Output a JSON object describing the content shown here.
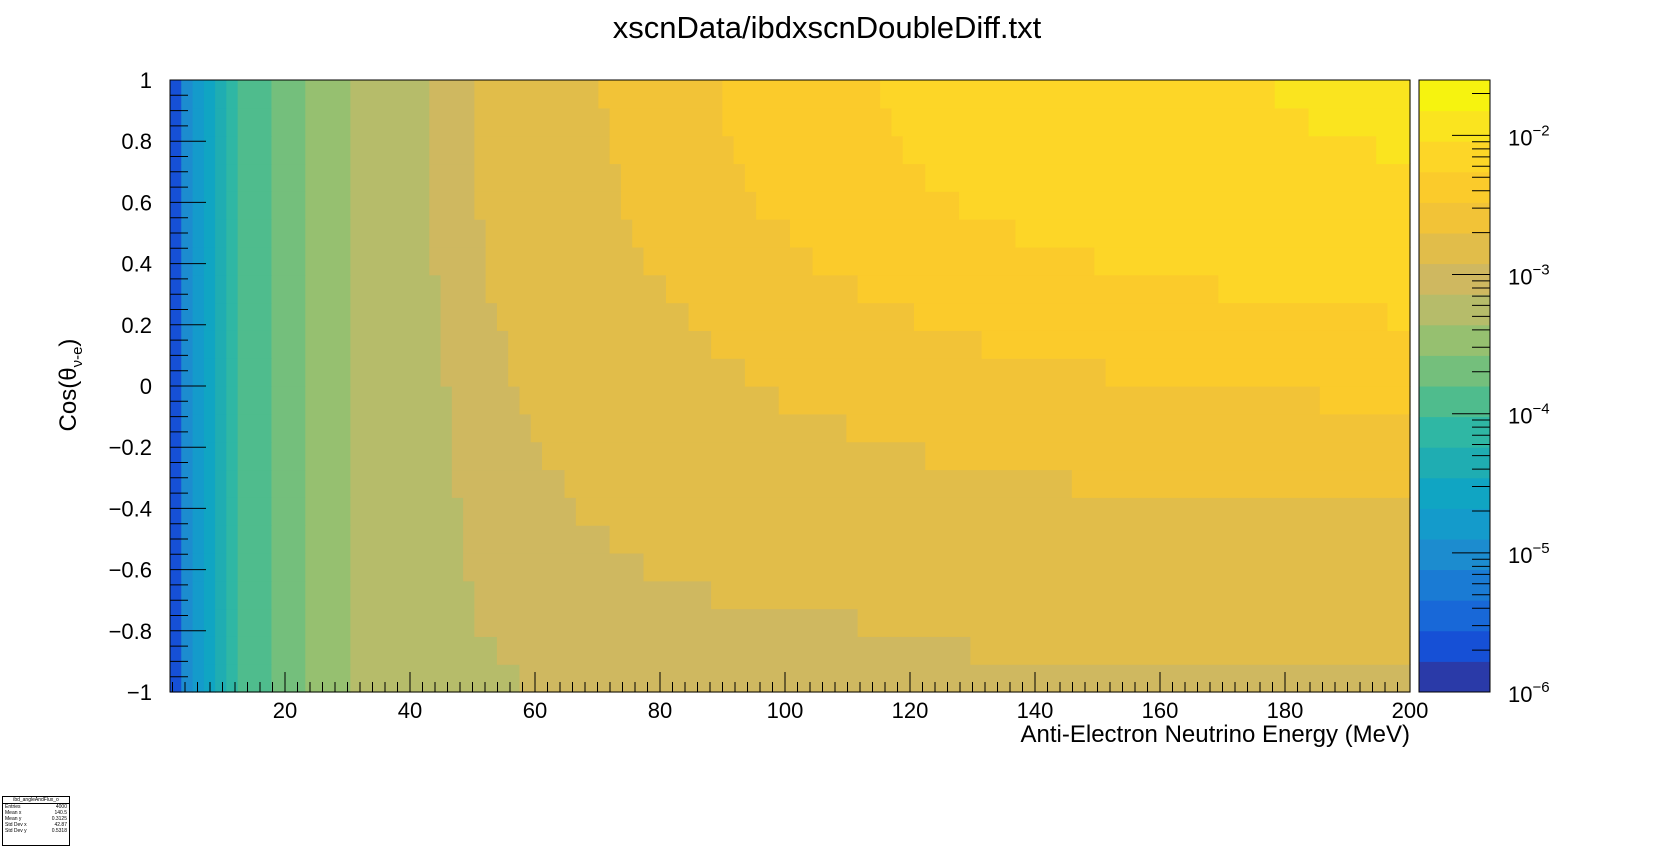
{
  "title": "xscnData/ibdxscnDoubleDiff.txt",
  "chart_data": {
    "type": "heatmap",
    "title": "xscnData/ibdxscnDoubleDiff.txt",
    "xlabel": "Anti-Electron Neutrino Energy (MeV)",
    "ylabel_main": "Cos(θ",
    "ylabel_sub": "ν-e",
    "ylabel_close": ")",
    "xlim": [
      1.6,
      200
    ],
    "ylim": [
      -1,
      1
    ],
    "x_ticks": [
      "20",
      "40",
      "60",
      "80",
      "100",
      "120",
      "140",
      "160",
      "180",
      "200"
    ],
    "x_tick_values": [
      20,
      40,
      60,
      80,
      100,
      120,
      140,
      160,
      180,
      200
    ],
    "y_ticks": [
      "−1",
      "−0.8",
      "−0.6",
      "−0.4",
      "−0.2",
      "0",
      "0.2",
      "0.4",
      "0.6",
      "0.8",
      "1"
    ],
    "y_tick_values": [
      -1,
      -0.8,
      -0.6,
      -0.4,
      -0.2,
      0,
      0.2,
      0.4,
      0.6,
      0.8,
      1
    ],
    "z_scale": "log",
    "z_range": [
      1e-06,
      0.025
    ],
    "z_ticks": [
      {
        "base": "10",
        "exp": "−6",
        "value": -6
      },
      {
        "base": "10",
        "exp": "−5",
        "value": -5
      },
      {
        "base": "10",
        "exp": "−4",
        "value": -4
      },
      {
        "base": "10",
        "exp": "−3",
        "value": -3
      },
      {
        "base": "10",
        "exp": "−2",
        "value": -2
      }
    ],
    "palette": [
      "#2a3aa8",
      "#1650d6",
      "#1868d8",
      "#1a7bd4",
      "#1c8ccf",
      "#149bcb",
      "#10a5c3",
      "#1fadb2",
      "#2fb7a4",
      "#4fbc8d",
      "#74bf7c",
      "#96c070",
      "#b6bc6a",
      "#cfb860",
      "#e1bd4a",
      "#f2c337",
      "#fbcb2b",
      "#fdd627",
      "#fae41f",
      "#f6f30f"
    ],
    "contour_levels_x": {
      "description": "x where level k is reached, per row from y=-1 (bottom) to y=1 (top)",
      "bands": [
        {
          "level": 12,
          "x": [
            57.5,
            53.5,
            51,
            50,
            49,
            48.5,
            48,
            47.5,
            47,
            46.5,
            46,
            45.5,
            45,
            44.5,
            44,
            43.8,
            43.5,
            43.2,
            43,
            42.8,
            42.6,
            42.5
          ]
        },
        {
          "level": 13,
          "x": [
            200,
            130,
            111,
            88,
            78,
            72,
            67,
            64,
            61,
            59,
            57,
            56,
            55,
            54,
            53,
            52,
            51.5,
            51,
            50.5,
            50,
            49.8,
            49.5
          ]
        },
        {
          "level": 14,
          "x": [
            999,
            999,
            999,
            999,
            999,
            999,
            999,
            145,
            123,
            109,
            99,
            93,
            88,
            84,
            81,
            78,
            76,
            74.5,
            73,
            72,
            71.5,
            71
          ]
        },
        {
          "level": 15,
          "x": [
            999,
            999,
            999,
            999,
            999,
            999,
            999,
            999,
            999,
            999,
            185,
            152,
            132,
            120,
            112,
            105,
            100,
            96,
            93,
            91,
            90,
            89.5
          ]
        },
        {
          "level": 16,
          "x": [
            999,
            999,
            999,
            999,
            999,
            999,
            999,
            999,
            999,
            999,
            999,
            999,
            999,
            196,
            170,
            150,
            137,
            128,
            122,
            119,
            117,
            116
          ]
        },
        {
          "level": 17,
          "x": [
            999,
            999,
            999,
            999,
            999,
            999,
            999,
            999,
            999,
            999,
            999,
            999,
            999,
            999,
            999,
            999,
            999,
            999,
            999,
            195,
            183,
            178
          ]
        }
      ]
    },
    "low_x_bands": [
      {
        "level": 0,
        "x": 2.5
      },
      {
        "level": 1,
        "x": 3.0
      },
      {
        "level": 2,
        "x": 3.6
      },
      {
        "level": 3,
        "x": 4.3
      },
      {
        "level": 4,
        "x": 5.2
      },
      {
        "level": 5,
        "x": 7.0
      },
      {
        "level": 6,
        "x": 8.2
      },
      {
        "level": 7,
        "x": 10.0
      },
      {
        "level": 8,
        "x": 13.2
      },
      {
        "level": 9,
        "x": 17.5
      },
      {
        "level": 10,
        "x": 23.0
      },
      {
        "level": 11,
        "x": 31.0
      }
    ],
    "bottom_right_band": {
      "level": 13,
      "x_from": 112,
      "y_to": -0.88
    }
  },
  "stats": {
    "name": "ibd_angleAndFlux_o",
    "rows": [
      {
        "label": "Entries",
        "value": "4000"
      },
      {
        "label": "Mean x",
        "value": "140.5"
      },
      {
        "label": "Mean y",
        "value": "0.3125"
      },
      {
        "label": "Std Dev x",
        "value": "42.87"
      },
      {
        "label": "Std Dev y",
        "value": "0.5318"
      }
    ]
  }
}
